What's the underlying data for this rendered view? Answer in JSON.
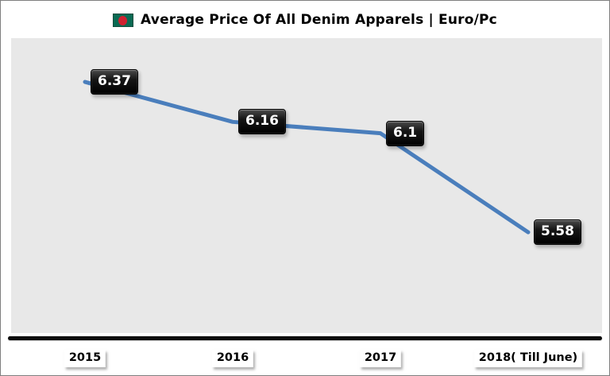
{
  "header": {
    "title": "Average Price Of All Denim Apparels | Euro/Pc",
    "legend_icon": "bangladesh-flag-icon"
  },
  "colors": {
    "line": "#4a7ebc",
    "plot_background": "#e8e8e8",
    "data_label_box": "#0a0a0a",
    "data_label_text": "#ffffff",
    "flag_green": "#0b6a53",
    "flag_red": "#cf2130",
    "axis_line": "#0d0d0d",
    "frame_border": "#7f7f7f"
  },
  "chart_data": {
    "type": "line",
    "title": "Average Price Of All Denim Apparels | Euro/Pc",
    "categories": [
      "2015",
      "2016",
      "2017",
      "2018( Till June)"
    ],
    "values": [
      6.37,
      6.16,
      6.1,
      5.58
    ],
    "point_labels": [
      "6.37",
      "6.16",
      "6.1",
      "5.58"
    ],
    "series_name": "Average Price Of All Denim Apparels | Euro/Pc",
    "xlabel": "",
    "ylabel": "",
    "ylim": [
      5.05,
      6.6
    ],
    "grid": false,
    "legend_position": "top"
  }
}
